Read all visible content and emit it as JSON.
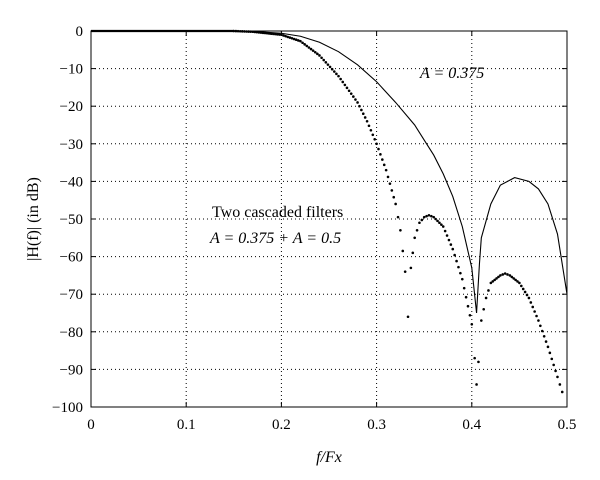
{
  "chart_data": {
    "type": "line",
    "xlabel": "f/Fx",
    "ylabel": "|H(f)| (in dB)",
    "xlim": [
      0,
      0.5
    ],
    "ylim": [
      -100,
      0
    ],
    "grid": true,
    "x_ticks": [
      "0",
      "0.1",
      "0.2",
      "0.3",
      "0.4",
      "0.5"
    ],
    "y_ticks": [
      "0",
      "−10",
      "−20",
      "−30",
      "−40",
      "−50",
      "−60",
      "−70",
      "−80",
      "−90",
      "−100"
    ],
    "annotations": [
      {
        "text": "A = 0.375",
        "target_series": "thin"
      },
      {
        "text": "Two cascaded filters",
        "target_series": "dotted"
      },
      {
        "text": "A = 0.375 + A = 0.5",
        "target_series": "dotted"
      }
    ],
    "series": [
      {
        "style": "solid-thin",
        "points": [
          [
            0,
            0
          ],
          [
            0.05,
            0
          ],
          [
            0.1,
            0
          ],
          [
            0.15,
            0
          ],
          [
            0.17,
            -0.1
          ],
          [
            0.2,
            -0.6
          ],
          [
            0.22,
            -1.4
          ],
          [
            0.24,
            -3
          ],
          [
            0.26,
            -5.5
          ],
          [
            0.28,
            -9
          ],
          [
            0.3,
            -13.5
          ],
          [
            0.32,
            -19
          ],
          [
            0.34,
            -25
          ],
          [
            0.35,
            -29
          ],
          [
            0.36,
            -33
          ],
          [
            0.37,
            -38
          ],
          [
            0.38,
            -44
          ],
          [
            0.39,
            -52
          ],
          [
            0.4,
            -63
          ],
          [
            0.405,
            -75
          ],
          [
            0.408,
            -62
          ],
          [
            0.41,
            -55
          ],
          [
            0.42,
            -46
          ],
          [
            0.43,
            -41
          ],
          [
            0.445,
            -39
          ],
          [
            0.46,
            -40
          ],
          [
            0.47,
            -42
          ],
          [
            0.48,
            -46
          ],
          [
            0.49,
            -54
          ],
          [
            0.5,
            -70
          ]
        ]
      },
      {
        "style": "dotted-thick",
        "points": [
          [
            0,
            0
          ],
          [
            0.05,
            0
          ],
          [
            0.1,
            0
          ],
          [
            0.15,
            0
          ],
          [
            0.17,
            -0.2
          ],
          [
            0.2,
            -1
          ],
          [
            0.22,
            -2.7
          ],
          [
            0.24,
            -6.5
          ],
          [
            0.26,
            -12
          ],
          [
            0.28,
            -19
          ],
          [
            0.29,
            -24
          ],
          [
            0.3,
            -30
          ],
          [
            0.31,
            -37
          ],
          [
            0.32,
            -46
          ],
          [
            0.325,
            -53
          ],
          [
            0.33,
            -64
          ],
          [
            0.333,
            -76
          ],
          [
            0.336,
            -63
          ],
          [
            0.34,
            -55
          ],
          [
            0.345,
            -51
          ],
          [
            0.35,
            -49.5
          ],
          [
            0.355,
            -49
          ],
          [
            0.36,
            -49.5
          ],
          [
            0.37,
            -52
          ],
          [
            0.38,
            -58
          ],
          [
            0.39,
            -66
          ],
          [
            0.4,
            -78
          ],
          [
            0.403,
            -87
          ],
          [
            0.405,
            -94
          ],
          [
            0.407,
            -88
          ],
          [
            0.41,
            -77
          ],
          [
            0.415,
            -71
          ],
          [
            0.42,
            -67
          ],
          [
            0.43,
            -65
          ],
          [
            0.435,
            -64.5
          ],
          [
            0.44,
            -65
          ],
          [
            0.45,
            -67
          ],
          [
            0.46,
            -71
          ],
          [
            0.47,
            -77
          ],
          [
            0.48,
            -84
          ],
          [
            0.49,
            -92
          ],
          [
            0.495,
            -96
          ]
        ]
      }
    ]
  }
}
